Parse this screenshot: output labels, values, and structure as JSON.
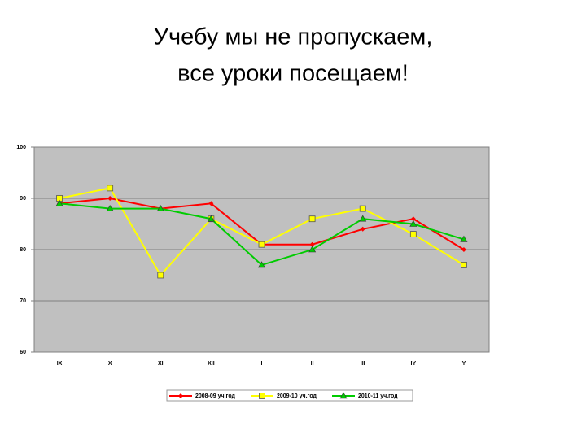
{
  "chart_data": {
    "type": "line",
    "title": [
      "Учебу мы не пропускаем,",
      "все уроки посещаем!"
    ],
    "categories": [
      "IX",
      "X",
      "XI",
      "XII",
      "I",
      "II",
      "III",
      "IY",
      "Y"
    ],
    "series": [
      {
        "name": "2008-09 уч.год",
        "color": "#ff0000",
        "marker": "diamond",
        "values": [
          89,
          90,
          88,
          89,
          81,
          81,
          84,
          86,
          80
        ]
      },
      {
        "name": "2009-10 уч.год",
        "color": "#ffff00",
        "marker": "square",
        "values": [
          90,
          92,
          75,
          86,
          81,
          86,
          88,
          83,
          77
        ]
      },
      {
        "name": "2010-11 уч.год",
        "color": "#00cc00",
        "marker": "triangle",
        "values": [
          89,
          88,
          88,
          86,
          77,
          80,
          86,
          85,
          82
        ]
      }
    ],
    "ylim": [
      60,
      100
    ],
    "yticks": [
      60,
      70,
      80,
      90,
      100
    ],
    "grid": true,
    "legend": "bottom"
  }
}
